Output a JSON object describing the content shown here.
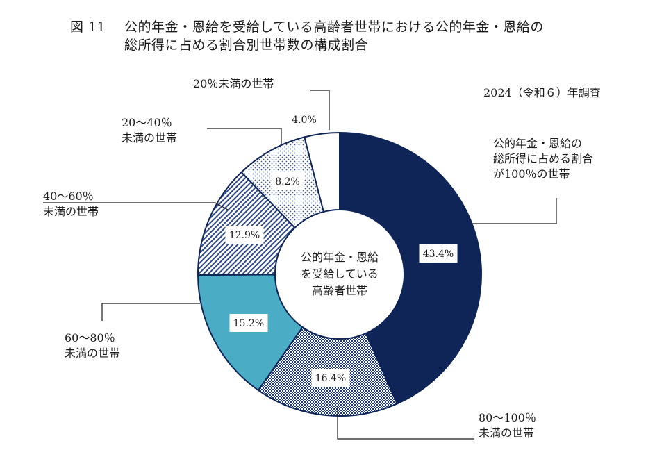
{
  "title": {
    "figure_number": "図 11",
    "line1": "公的年金・恩給を受給している高齢者世帯における公的年金・恩給の",
    "line2": "総所得に占める割合別世帯数の構成割合"
  },
  "survey_note": "2024（令和６）年調査",
  "chart_data": {
    "type": "pie",
    "variant": "donut",
    "center_label": [
      "公的年金・恩給",
      "を受給している",
      "高齢者世帯"
    ],
    "start": "12 o'clock",
    "direction": "clockwise",
    "slices": [
      {
        "label": [
          "公的年金・恩給の",
          "総所得に占める割合",
          "が100％の世帯"
        ],
        "value": 43.4,
        "value_label": "43.4%",
        "color": "#0f2557",
        "pattern": "solid"
      },
      {
        "label": [
          "80～100％",
          "未満の世帯"
        ],
        "value": 16.4,
        "value_label": "16.4%",
        "color": "#1d3a78",
        "pattern": "checker"
      },
      {
        "label": [
          "60～80％",
          "未満の世帯"
        ],
        "value": 15.2,
        "value_label": "15.2%",
        "color": "#4bacc6",
        "pattern": "solid"
      },
      {
        "label": [
          "40～60％",
          "未満の世帯"
        ],
        "value": 12.9,
        "value_label": "12.9%",
        "color": "#2e4a86",
        "pattern": "diagonal"
      },
      {
        "label": [
          "20～40％",
          "未満の世帯"
        ],
        "value": 8.2,
        "value_label": "8.2%",
        "color": "#3a5a9a",
        "pattern": "dots"
      },
      {
        "label": [
          "20％未満の世帯"
        ],
        "value": 4.0,
        "value_label": "4.0%",
        "color": "#ffffff",
        "pattern": "none"
      }
    ]
  }
}
